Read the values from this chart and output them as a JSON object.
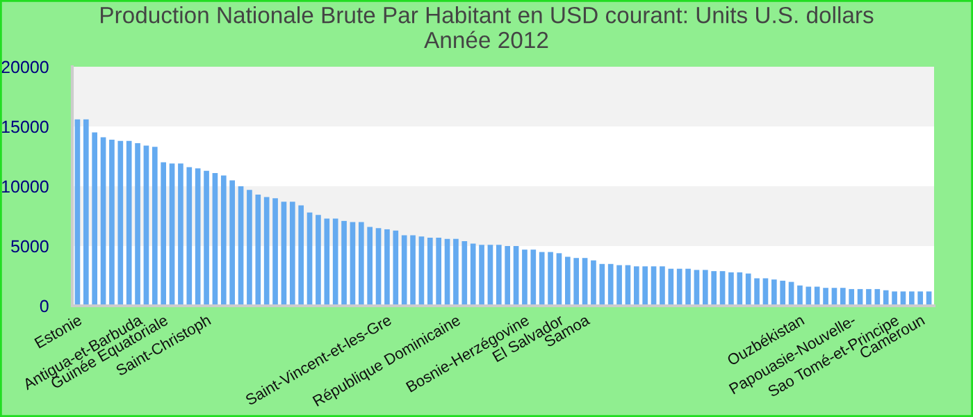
{
  "chart_data": {
    "type": "bar",
    "title": "Production Nationale Brute Par Habitant en USD courant: Units U.S. dollars\nAnnée 2012",
    "categories": [
      "Estonie",
      null,
      null,
      null,
      null,
      null,
      null,
      "Antigua-et-Barbuda",
      null,
      null,
      "Guinée Equatoriale",
      null,
      null,
      null,
      null,
      "Saint-Christoph",
      null,
      null,
      null,
      null,
      null,
      null,
      null,
      null,
      null,
      null,
      null,
      null,
      null,
      null,
      null,
      null,
      null,
      null,
      null,
      null,
      "Saint-Vincent-et-les-Gre",
      null,
      null,
      null,
      null,
      null,
      null,
      null,
      "République Dominicaine",
      null,
      null,
      null,
      null,
      null,
      null,
      null,
      "Bosnie-Herzégovine",
      null,
      null,
      null,
      "El Salvador",
      null,
      null,
      "Samoa",
      null,
      null,
      null,
      null,
      null,
      null,
      null,
      null,
      null,
      null,
      null,
      null,
      null,
      null,
      null,
      null,
      null,
      null,
      null,
      null,
      null,
      null,
      null,
      null,
      "Ouzbékistan",
      null,
      null,
      null,
      null,
      null,
      "Papouasie-Nouvelle-",
      null,
      null,
      null,
      null,
      "Sao Tomé-et-Principe",
      null,
      null,
      "Cameroun",
      null
    ],
    "values": [
      15600,
      15600,
      14500,
      14100,
      13900,
      13800,
      13800,
      13600,
      13400,
      13300,
      12000,
      11900,
      11900,
      11600,
      11500,
      11300,
      11100,
      10900,
      10500,
      10000,
      9700,
      9300,
      9100,
      9000,
      8700,
      8700,
      8400,
      7800,
      7600,
      7300,
      7300,
      7100,
      7000,
      7000,
      6600,
      6500,
      6400,
      6300,
      5900,
      5900,
      5800,
      5700,
      5700,
      5600,
      5600,
      5400,
      5200,
      5100,
      5100,
      5100,
      5000,
      5000,
      4700,
      4700,
      4500,
      4500,
      4400,
      4100,
      4000,
      4000,
      3800,
      3500,
      3500,
      3400,
      3400,
      3300,
      3300,
      3300,
      3300,
      3100,
      3100,
      3100,
      3000,
      3000,
      2900,
      2900,
      2800,
      2800,
      2700,
      2300,
      2300,
      2200,
      2100,
      2000,
      1700,
      1600,
      1600,
      1500,
      1500,
      1500,
      1400,
      1400,
      1400,
      1400,
      1300,
      1200,
      1200,
      1200,
      1200,
      1200
    ],
    "color": "#64aaf0",
    "ylim": [
      0,
      20000
    ],
    "yticks": [
      0,
      5000,
      10000,
      15000,
      20000
    ],
    "bands": [
      {
        "axis": "y",
        "from": 5000,
        "to": 10000,
        "color": "#f2f2f2"
      },
      {
        "axis": "y",
        "from": 15000,
        "to": 20000,
        "color": "#f2f2f2"
      }
    ]
  }
}
